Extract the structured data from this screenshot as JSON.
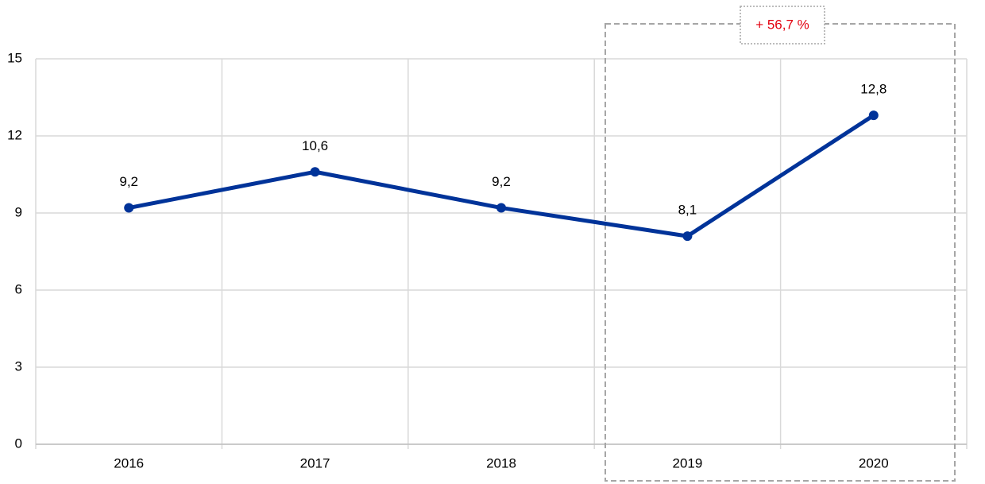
{
  "chart_data": {
    "type": "line",
    "categories": [
      "2016",
      "2017",
      "2018",
      "2019",
      "2020"
    ],
    "series": [
      {
        "name": "Value",
        "color": "#003399",
        "values": [
          9.2,
          10.6,
          9.2,
          8.1,
          12.8
        ],
        "value_labels": [
          "9,2",
          "10,6",
          "9,2",
          "8,1",
          "12,8"
        ]
      }
    ],
    "ylim": [
      0,
      15
    ],
    "yticks": [
      0,
      3,
      6,
      9,
      12,
      15
    ],
    "grid": true,
    "annotation": "+ 56,7 %",
    "annotation_color": "#e3000f"
  }
}
